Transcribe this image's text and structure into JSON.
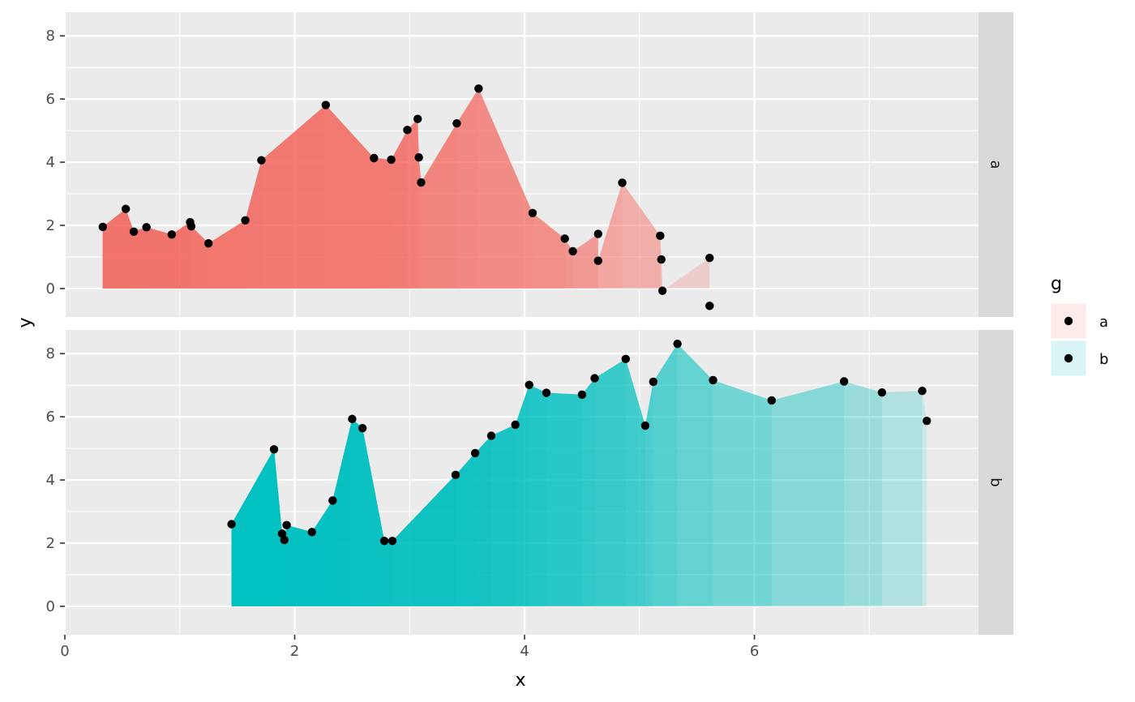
{
  "chart_data": {
    "type": "area",
    "description_free": true,
    "xlabel": "x",
    "ylabel": "y",
    "x_ticks": [
      0,
      2,
      4,
      6
    ],
    "y_ticks": [
      0,
      2,
      4,
      6,
      8
    ],
    "xlim": [
      0,
      7.95
    ],
    "facet_ylim": [
      -0.9,
      8.75
    ],
    "legend": {
      "title": "g",
      "placement": "right",
      "entries": [
        {
          "label": "a",
          "fill": "#F8766D"
        },
        {
          "label": "b",
          "fill": "#00BFC4"
        }
      ]
    },
    "panel_background": "#EBEBEB",
    "strip_background": "#D9D9D9",
    "grid": true,
    "facets": [
      {
        "strip": "a",
        "color": "#F8766D",
        "points": [
          [
            0.33,
            1.95
          ],
          [
            0.53,
            2.52
          ],
          [
            0.6,
            1.8
          ],
          [
            0.71,
            1.94
          ],
          [
            0.93,
            1.71
          ],
          [
            1.09,
            2.1
          ],
          [
            1.1,
            1.97
          ],
          [
            1.25,
            1.43
          ],
          [
            1.57,
            2.16
          ],
          [
            1.71,
            4.06
          ],
          [
            2.27,
            5.81
          ],
          [
            2.69,
            4.13
          ],
          [
            2.84,
            4.08
          ],
          [
            2.98,
            5.02
          ],
          [
            3.07,
            5.37
          ],
          [
            3.08,
            4.15
          ],
          [
            3.1,
            3.36
          ],
          [
            3.41,
            5.23
          ],
          [
            3.6,
            6.33
          ],
          [
            4.07,
            2.39
          ],
          [
            4.35,
            1.58
          ],
          [
            4.42,
            1.18
          ],
          [
            4.64,
            1.73
          ],
          [
            4.64,
            0.88
          ],
          [
            4.85,
            3.35
          ],
          [
            5.18,
            1.67
          ],
          [
            5.19,
            0.92
          ],
          [
            5.2,
            -0.07
          ],
          [
            5.61,
            0.97
          ],
          [
            5.61,
            -0.55
          ]
        ]
      },
      {
        "strip": "b",
        "color": "#00BFC4",
        "points": [
          [
            1.45,
            2.6
          ],
          [
            1.82,
            4.97
          ],
          [
            1.89,
            2.3
          ],
          [
            1.91,
            2.1
          ],
          [
            1.93,
            2.57
          ],
          [
            2.15,
            2.35
          ],
          [
            2.33,
            3.35
          ],
          [
            2.5,
            5.93
          ],
          [
            2.59,
            5.64
          ],
          [
            2.78,
            2.07
          ],
          [
            2.85,
            2.07
          ],
          [
            3.4,
            4.16
          ],
          [
            3.57,
            4.85
          ],
          [
            3.71,
            5.4
          ],
          [
            3.92,
            5.75
          ],
          [
            4.04,
            7.01
          ],
          [
            4.19,
            6.76
          ],
          [
            4.5,
            6.7
          ],
          [
            4.61,
            7.22
          ],
          [
            4.88,
            7.83
          ],
          [
            5.05,
            5.72
          ],
          [
            5.12,
            7.11
          ],
          [
            5.33,
            8.31
          ],
          [
            5.64,
            7.16
          ],
          [
            6.15,
            6.52
          ],
          [
            6.78,
            7.12
          ],
          [
            7.11,
            6.77
          ],
          [
            7.46,
            6.82
          ],
          [
            7.5,
            5.87
          ]
        ]
      }
    ]
  }
}
